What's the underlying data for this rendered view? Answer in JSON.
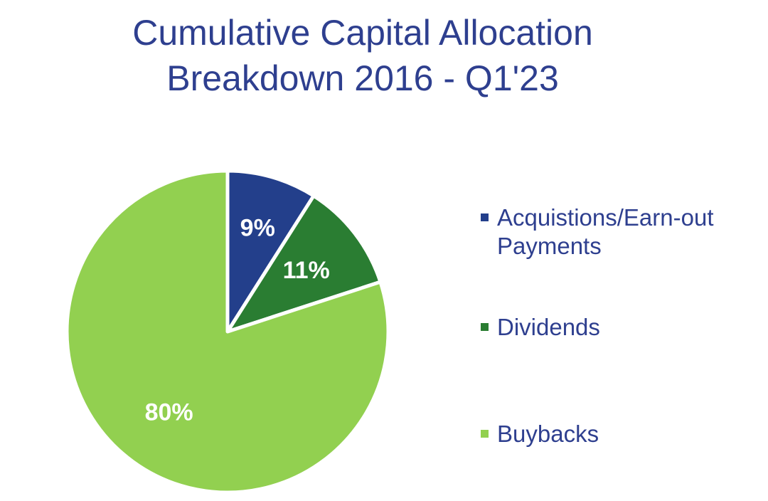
{
  "title": {
    "line1": "Cumulative Capital Allocation",
    "line2": "Breakdown 2016 - Q1'23"
  },
  "chart_data": {
    "type": "pie",
    "title": "Cumulative Capital Allocation Breakdown 2016 - Q1'23",
    "categories": [
      "Acquistions/Earn-out Payments",
      "Dividends",
      "Buybacks"
    ],
    "values": [
      9,
      11,
      80
    ],
    "labels": [
      "9%",
      "11%",
      "80%"
    ],
    "colors": [
      "#233f8b",
      "#2a7d32",
      "#92d050"
    ],
    "start_angle_deg": 0,
    "direction": "clockwise",
    "legend_position": "right"
  },
  "legend": {
    "items": [
      {
        "label_line1": "Acquistions/Earn-out",
        "label_line2": "Payments",
        "color": "#233f8b"
      },
      {
        "label_line1": "Dividends",
        "label_line2": "",
        "color": "#2a7d32"
      },
      {
        "label_line1": "Buybacks",
        "label_line2": "",
        "color": "#92d050"
      }
    ]
  }
}
